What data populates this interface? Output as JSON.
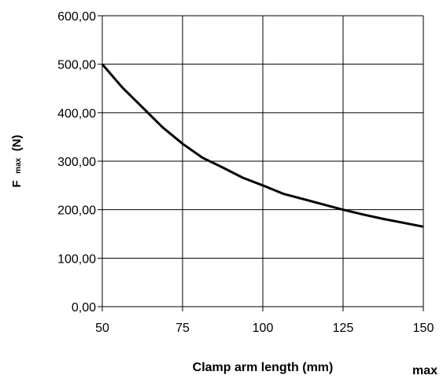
{
  "chart_data": {
    "type": "line",
    "xlabel": "Clamp arm length (mm)",
    "xlabel_suffix": "max",
    "ylabel": {
      "main": "F",
      "sub": "max",
      "unit": "(N)"
    },
    "xlim": [
      50,
      150
    ],
    "ylim": [
      0,
      600
    ],
    "x_ticks": [
      50,
      75,
      100,
      125,
      150
    ],
    "y_ticks": [
      0,
      100,
      200,
      300,
      400,
      500,
      600
    ],
    "x_tick_labels": [
      "50",
      "75",
      "100",
      "125",
      "150"
    ],
    "y_tick_labels": [
      "0,00",
      "100,00",
      "200,00",
      "300,00",
      "400,00",
      "500,00",
      "600,00"
    ],
    "grid": true,
    "series": [
      {
        "color": "#000000",
        "x": [
          50,
          56.25,
          62.5,
          68.75,
          75,
          81.25,
          87.5,
          93.75,
          100,
          106.25,
          112.5,
          118.75,
          125,
          131.25,
          137.5,
          143.75,
          150
        ],
        "y": [
          500,
          452,
          411,
          370,
          336,
          307,
          287,
          266,
          250,
          233,
          222,
          211,
          200,
          190,
          181,
          173,
          165
        ]
      }
    ]
  }
}
